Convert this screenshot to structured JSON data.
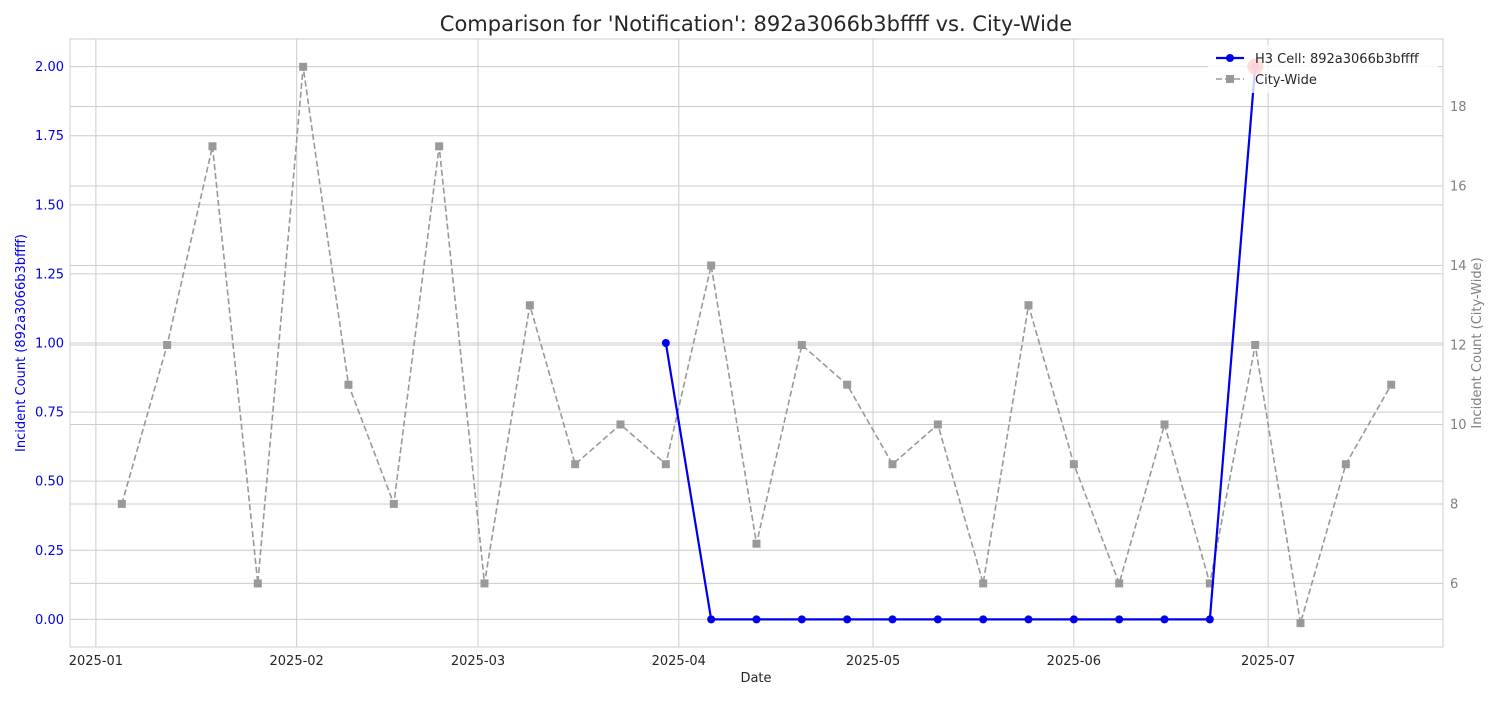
{
  "chart_data": {
    "type": "line",
    "title": "Comparison for 'Notification': 892a3066b3bffff vs. City-Wide",
    "xlabel": "Date",
    "ylabel_left": "Incident Count (892a3066b3bffff)",
    "ylabel_right": "Incident Count (City-Wide)",
    "x_range": [
      "2024-12-28",
      "2025-07-28"
    ],
    "x_ticks": [
      "2025-01-01",
      "2025-02-01",
      "2025-03-01",
      "2025-04-01",
      "2025-05-01",
      "2025-06-01",
      "2025-07-01"
    ],
    "x_tick_labels": [
      "2025-01",
      "2025-02",
      "2025-03",
      "2025-04",
      "2025-05",
      "2025-06",
      "2025-07"
    ],
    "ylim_left": [
      -0.1,
      2.1
    ],
    "y_ticks_left": [
      0.0,
      0.25,
      0.5,
      0.75,
      1.0,
      1.25,
      1.5,
      1.75,
      2.0
    ],
    "y_tick_labels_left": [
      "0.00",
      "0.25",
      "0.50",
      "0.75",
      "1.00",
      "1.25",
      "1.50",
      "1.75",
      "2.00"
    ],
    "ylim_right": [
      4.4,
      19.7
    ],
    "y_ticks_right": [
      6,
      8,
      10,
      12,
      14,
      16,
      18
    ],
    "y_tick_labels_right": [
      "6",
      "8",
      "10",
      "12",
      "14",
      "16",
      "18"
    ],
    "grid": true,
    "legend_position": "top-right",
    "series": [
      {
        "name": "H3 Cell: 892a3066b3bffff",
        "axis": "left",
        "color": "#0000ee",
        "style": "solid",
        "marker": "circle",
        "x": [
          "2025-03-30",
          "2025-04-06",
          "2025-04-13",
          "2025-04-20",
          "2025-04-27",
          "2025-05-04",
          "2025-05-11",
          "2025-05-18",
          "2025-05-25",
          "2025-06-01",
          "2025-06-08",
          "2025-06-15",
          "2025-06-22",
          "2025-06-29"
        ],
        "values": [
          1,
          0,
          0,
          0,
          0,
          0,
          0,
          0,
          0,
          0,
          0,
          0,
          0,
          2
        ]
      },
      {
        "name": "City-Wide",
        "axis": "right",
        "color": "#999999",
        "style": "dashed",
        "marker": "square",
        "x": [
          "2025-01-05",
          "2025-01-12",
          "2025-01-19",
          "2025-01-26",
          "2025-02-02",
          "2025-02-09",
          "2025-02-16",
          "2025-02-23",
          "2025-03-02",
          "2025-03-09",
          "2025-03-16",
          "2025-03-23",
          "2025-03-30",
          "2025-04-06",
          "2025-04-13",
          "2025-04-20",
          "2025-04-27",
          "2025-05-04",
          "2025-05-11",
          "2025-05-18",
          "2025-05-25",
          "2025-06-01",
          "2025-06-08",
          "2025-06-15",
          "2025-06-22",
          "2025-06-29",
          "2025-07-06",
          "2025-07-13",
          "2025-07-20"
        ],
        "values": [
          8,
          12,
          17,
          6,
          19,
          11,
          8,
          17,
          6,
          13,
          9,
          10,
          9,
          14,
          7,
          12,
          11,
          9,
          10,
          6,
          13,
          9,
          6,
          10,
          6,
          12,
          5,
          9,
          11
        ]
      }
    ],
    "highlight": {
      "series": 0,
      "x": "2025-06-29",
      "value": 2,
      "color": "#ff2a2a"
    }
  }
}
